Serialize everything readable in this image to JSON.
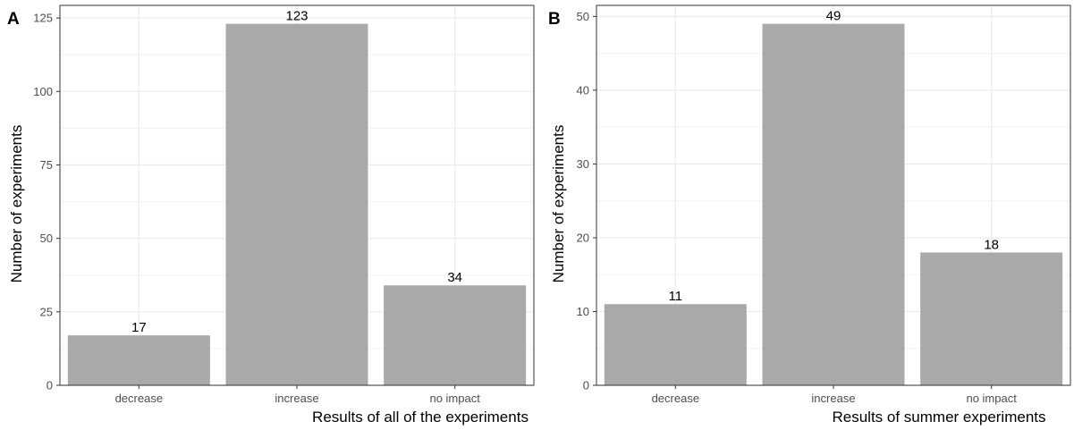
{
  "chart_data": [
    {
      "type": "bar",
      "panel_label": "A",
      "title": "",
      "xlabel": "Results of all of the experiments",
      "ylabel": "Number of experiments",
      "categories": [
        "decrease",
        "increase",
        "no impact"
      ],
      "values": [
        17,
        123,
        34
      ],
      "data_labels": [
        "17",
        "123",
        "34"
      ],
      "ylim": [
        0,
        129.3
      ],
      "yticks": [
        0,
        25,
        50,
        75,
        100,
        125
      ],
      "ytick_labels": [
        "0",
        "25",
        "50",
        "75",
        "100",
        "125"
      ],
      "grid": true,
      "legend": "none",
      "bar_color": "#a9a9a9"
    },
    {
      "type": "bar",
      "panel_label": "B",
      "title": "",
      "xlabel": "Results of summer experiments",
      "ylabel": "Number of experiments",
      "categories": [
        "decrease",
        "increase",
        "no impact"
      ],
      "values": [
        11,
        49,
        18
      ],
      "data_labels": [
        "11",
        "49",
        "18"
      ],
      "ylim": [
        0,
        51.5
      ],
      "yticks": [
        0,
        10,
        20,
        30,
        40,
        50
      ],
      "ytick_labels": [
        "0",
        "10",
        "20",
        "30",
        "40",
        "50"
      ],
      "grid": true,
      "legend": "none",
      "bar_color": "#a9a9a9"
    }
  ]
}
